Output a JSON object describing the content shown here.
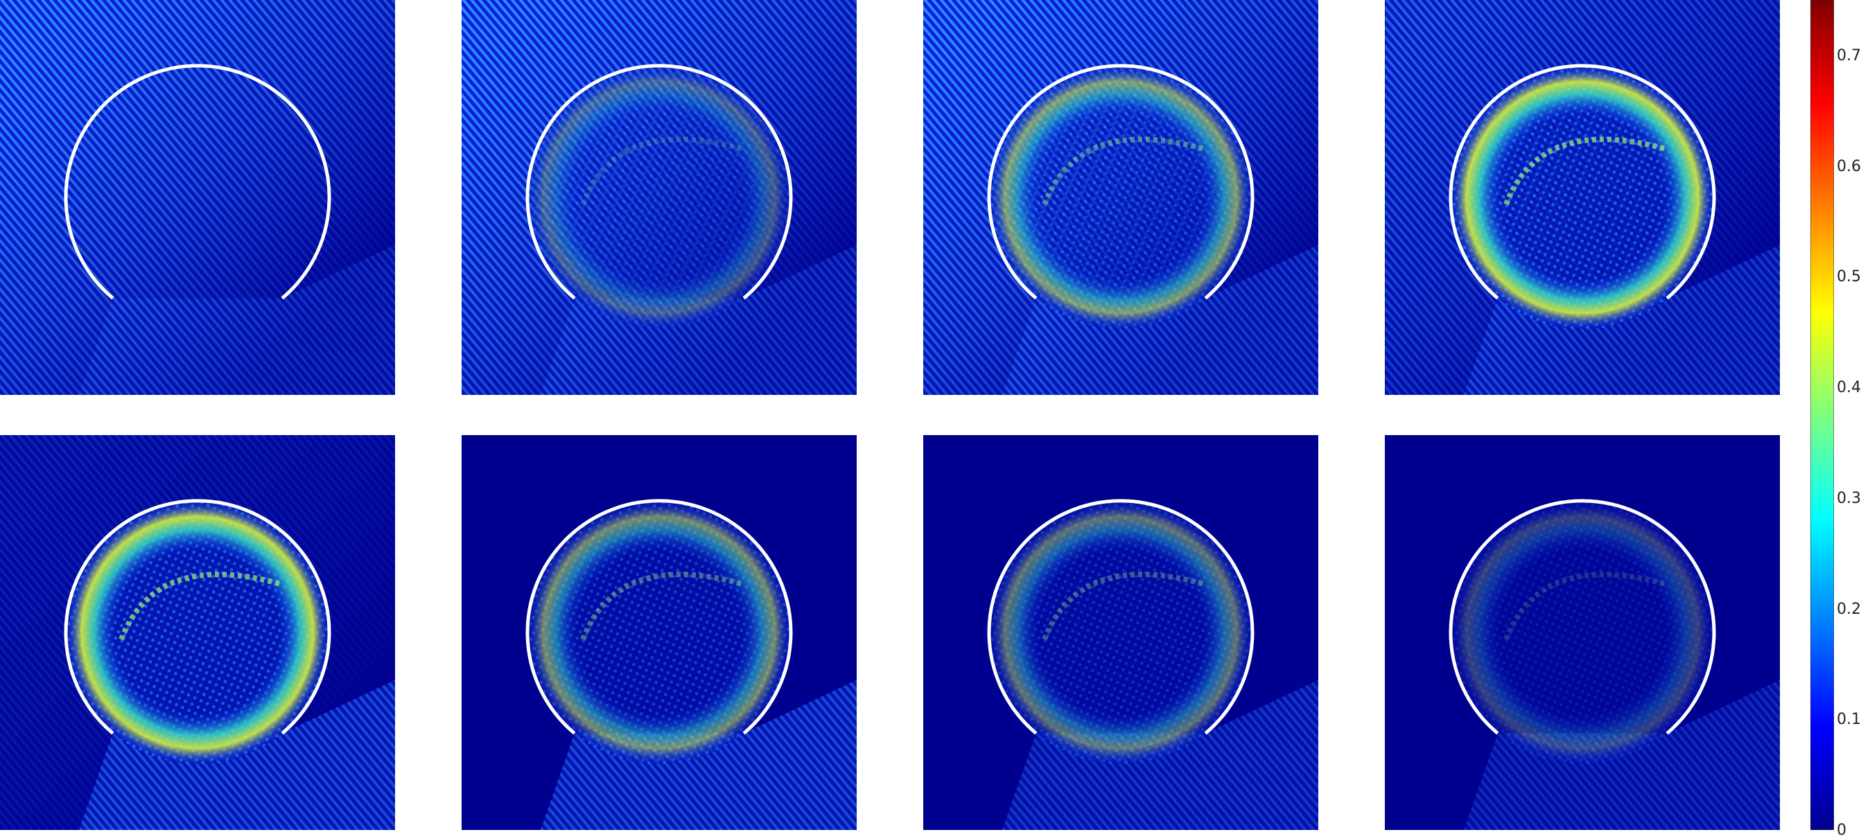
{
  "colormap": {
    "name": "jet",
    "stops": [
      "#00008f",
      "#0000ff",
      "#00ffff",
      "#ffff00",
      "#ff0000",
      "#800000"
    ],
    "ticks": [
      "0",
      "0.1",
      "0.2",
      "0.3",
      "0.4",
      "0.5",
      "0.6",
      "0.7"
    ],
    "range": [
      0,
      0.75
    ]
  },
  "panels": [
    {
      "id": "p1",
      "stage": "incident",
      "interior": "empty"
    },
    {
      "id": "p2",
      "stage": "incident",
      "interior": "weak-arc"
    },
    {
      "id": "p3",
      "stage": "incident",
      "interior": "bright-arc-right"
    },
    {
      "id": "p4",
      "stage": "incident",
      "interior": "bright-ring"
    },
    {
      "id": "p5",
      "stage": "trapped",
      "interior": "bright-ring-left"
    },
    {
      "id": "p6",
      "stage": "trapped",
      "interior": "medium"
    },
    {
      "id": "p7",
      "stage": "trapped",
      "interior": "decaying"
    },
    {
      "id": "p8",
      "stage": "trapped",
      "interior": "faint"
    }
  ],
  "boundary": {
    "color": "#ffffff",
    "shape": "circular-arc-with-bottom-opening"
  }
}
